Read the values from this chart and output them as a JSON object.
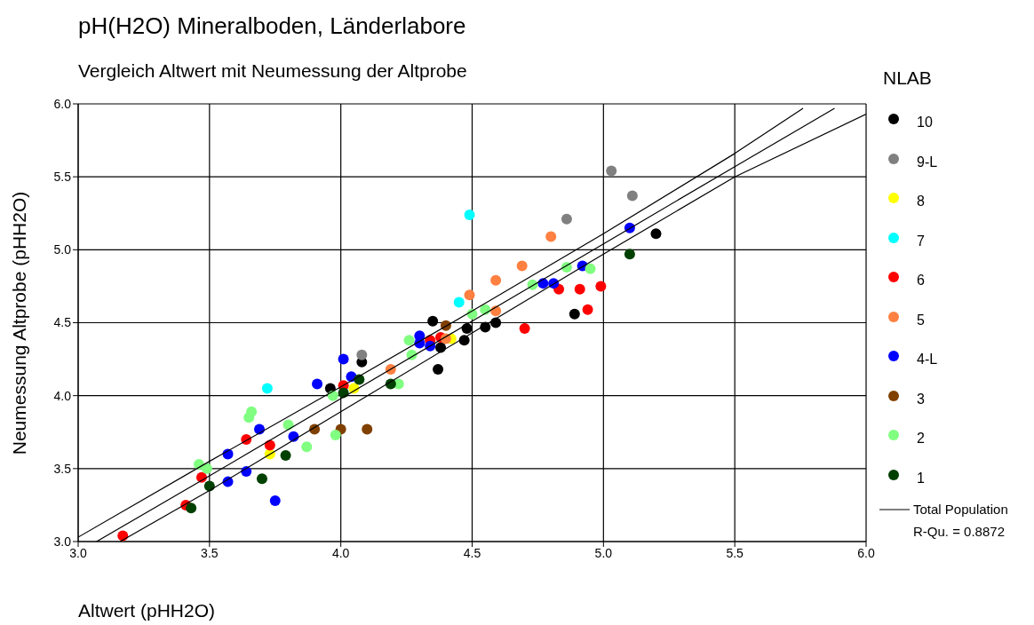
{
  "chart_data": {
    "type": "scatter",
    "title": "pH(H2O) Mineralboden, Länderlabore",
    "subtitle": "Vergleich Altwert mit Neumessung der Altprobe",
    "xlabel": "Altwert (pHH2O)",
    "ylabel": "Neumessung Altprobe (pHH2O)",
    "legend_title": "NLAB",
    "legend": "right",
    "grid": true,
    "marker": "circle",
    "xlim": [
      3,
      6
    ],
    "ylim": [
      3,
      6
    ],
    "xticks": [
      {
        "value": 3,
        "label": "3.0"
      },
      {
        "value": 3.5,
        "label": "3.5"
      },
      {
        "value": 4,
        "label": "4.0"
      },
      {
        "value": 4.5,
        "label": "4.5"
      },
      {
        "value": 5,
        "label": "5.0"
      },
      {
        "value": 5.5,
        "label": "5.5"
      },
      {
        "value": 6,
        "label": "6.0"
      }
    ],
    "yticks": [
      {
        "value": 3,
        "label": "3.0"
      },
      {
        "value": 3.5,
        "label": "3.5"
      },
      {
        "value": 4,
        "label": "4.0"
      },
      {
        "value": 4.5,
        "label": "4.5"
      },
      {
        "value": 5,
        "label": "5.0"
      },
      {
        "value": 5.5,
        "label": "5.5"
      },
      {
        "value": 6,
        "label": "6.0"
      }
    ],
    "annotations": [
      "R-Qu. = 0.8872"
    ],
    "series": [
      {
        "name": "10",
        "color": "#000000",
        "x": [
          3.96,
          4.08,
          4.35,
          4.38,
          4.37,
          4.47,
          4.48,
          4.55,
          4.59,
          4.89,
          5.2
        ],
        "values": [
          4.05,
          4.23,
          4.51,
          4.33,
          4.18,
          4.38,
          4.46,
          4.47,
          4.5,
          4.56,
          5.11
        ]
      },
      {
        "name": "9-L",
        "color": "#808080",
        "x": [
          4.08,
          4.86,
          5.03,
          5.11
        ],
        "values": [
          4.28,
          5.21,
          5.54,
          5.37
        ]
      },
      {
        "name": "8",
        "color": "#ffff00",
        "x": [
          3.73,
          4.05,
          4.42
        ],
        "values": [
          3.6,
          4.05,
          4.39
        ]
      },
      {
        "name": "7",
        "color": "#00ffff",
        "x": [
          3.72,
          4.45,
          4.49
        ],
        "values": [
          4.05,
          4.64,
          5.24
        ]
      },
      {
        "name": "6",
        "color": "#ff0000",
        "x": [
          3.17,
          3.41,
          3.47,
          3.64,
          3.73,
          4.01,
          4.34,
          4.38,
          4.7,
          4.83,
          4.91,
          4.94,
          4.99
        ],
        "values": [
          3.04,
          3.25,
          3.44,
          3.7,
          3.66,
          4.07,
          4.38,
          4.4,
          4.46,
          4.73,
          4.73,
          4.59,
          4.75
        ]
      },
      {
        "name": "5",
        "color": "#ff8040",
        "x": [
          4.19,
          4.4,
          4.49,
          4.59,
          4.59,
          4.69,
          4.8
        ],
        "values": [
          4.18,
          4.39,
          4.69,
          4.58,
          4.79,
          4.89,
          5.09
        ]
      },
      {
        "name": "4-L",
        "color": "#0000ff",
        "x": [
          3.57,
          3.57,
          3.64,
          3.69,
          3.75,
          3.82,
          3.91,
          4.01,
          4.04,
          4.3,
          4.3,
          4.34,
          4.77,
          4.81,
          4.92,
          5.1
        ],
        "values": [
          3.6,
          3.41,
          3.48,
          3.77,
          3.28,
          3.72,
          4.08,
          4.25,
          4.13,
          4.41,
          4.36,
          4.34,
          4.77,
          4.77,
          4.89,
          5.15
        ]
      },
      {
        "name": "3",
        "color": "#804000",
        "x": [
          3.9,
          4.0,
          4.1,
          4.4
        ],
        "values": [
          3.77,
          3.77,
          3.77,
          4.48
        ]
      },
      {
        "name": "2",
        "color": "#80ff80",
        "x": [
          3.46,
          3.49,
          3.65,
          3.66,
          3.8,
          3.87,
          3.98,
          3.97,
          4.22,
          4.26,
          4.27,
          4.5,
          4.55,
          4.73,
          4.86,
          4.95
        ],
        "values": [
          3.53,
          3.5,
          3.85,
          3.89,
          3.8,
          3.65,
          3.73,
          4.0,
          4.08,
          4.38,
          4.28,
          4.56,
          4.59,
          4.76,
          4.88,
          4.87
        ]
      },
      {
        "name": "1",
        "color": "#004000",
        "x": [
          3.43,
          3.5,
          3.7,
          3.79,
          4.01,
          4.07,
          4.19,
          5.1
        ],
        "values": [
          3.23,
          3.38,
          3.43,
          3.59,
          4.02,
          4.11,
          4.08,
          4.97
        ]
      },
      {
        "name": "Total Population",
        "type": "line",
        "color": "#000000",
        "line_style": "solid",
        "marker": "none",
        "x": [
          3.07,
          3.5,
          4.0,
          4.5,
          5.0,
          5.5,
          5.88
        ],
        "values": [
          3.0,
          3.45,
          3.98,
          4.51,
          5.04,
          5.57,
          5.97
        ]
      },
      {
        "type": "line",
        "color": "#000000",
        "line_style": "solid",
        "marker": "none",
        "x": [
          3.0,
          3.5,
          4.0,
          4.5,
          5.0,
          5.5,
          5.76
        ],
        "values": [
          3.03,
          3.55,
          4.06,
          4.58,
          5.11,
          5.66,
          5.97
        ]
      },
      {
        "type": "line",
        "color": "#000000",
        "line_style": "solid",
        "marker": "none",
        "x": [
          3.16,
          3.5,
          4.0,
          4.5,
          5.0,
          5.5,
          6.0
        ],
        "values": [
          3.0,
          3.35,
          3.89,
          4.43,
          4.97,
          5.5,
          5.93
        ]
      }
    ]
  }
}
